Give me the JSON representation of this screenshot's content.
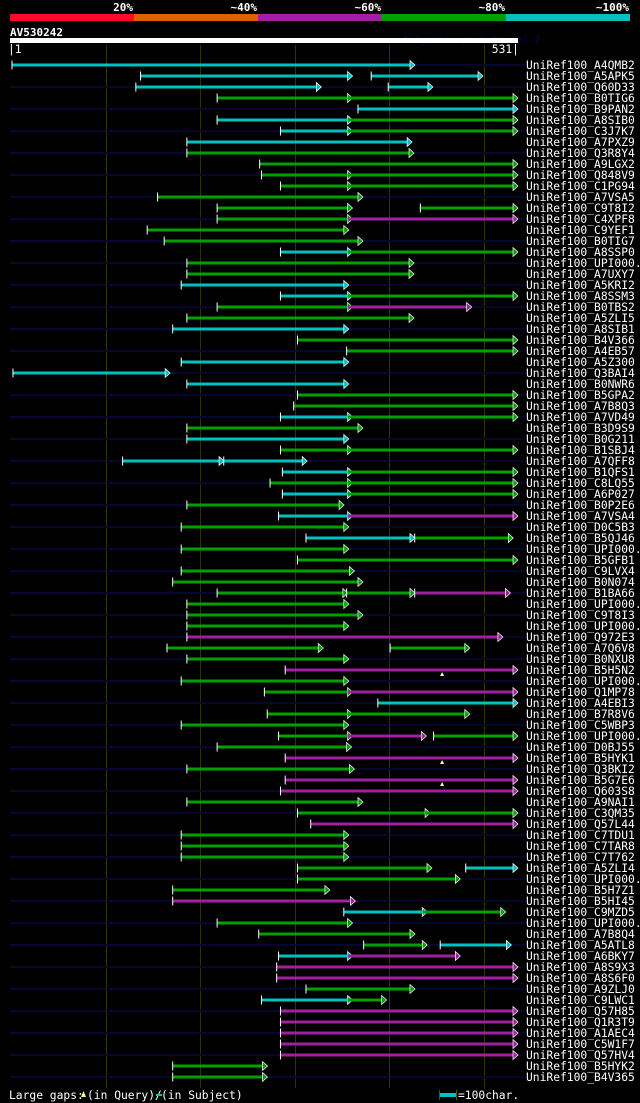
{
  "colors": {
    "r": "#ff0a2a",
    "o": "#e06000",
    "p": "#a020a0",
    "g": "#00a000",
    "c": "#00c0c0",
    "navy": "#06062e",
    "grid": "#333300",
    "gap": "#ffff80"
  },
  "identity_scale": [
    {
      "label": "20%",
      "color": "r"
    },
    {
      "label": "~40%",
      "color": "o"
    },
    {
      "label": "~60%",
      "color": "p"
    },
    {
      "label": "~80%",
      "color": "g"
    },
    {
      "label": "~100%",
      "color": "c"
    }
  ],
  "query": {
    "name": "AV530242",
    "length": 531,
    "start_label": "|1",
    "end_label": "531|",
    "watermark": "AlignView.pm Beta rel.7"
  },
  "grid_every": 100,
  "rows": [
    {
      "name": "UniRef100_A4QMB2",
      "segs": [
        [
          1,
          422,
          "c"
        ]
      ]
    },
    {
      "name": "UniRef100_A5APK5",
      "segs": [
        [
          137,
          356,
          "c"
        ],
        [
          381,
          494,
          "c"
        ]
      ]
    },
    {
      "name": "UniRef100_Q60D33",
      "segs": [
        [
          132,
          323,
          "c"
        ],
        [
          399,
          441,
          "c"
        ]
      ]
    },
    {
      "name": "UniRef100_B0TIG6",
      "segs": [
        [
          218,
          356,
          "g"
        ],
        [
          356,
          531,
          "g"
        ]
      ]
    },
    {
      "name": "UniRef100_B9PAN2",
      "segs": [
        [
          367,
          531,
          "c"
        ]
      ]
    },
    {
      "name": "UniRef100_A8SIB0",
      "segs": [
        [
          218,
          356,
          "c"
        ],
        [
          356,
          531,
          "g"
        ]
      ]
    },
    {
      "name": "UniRef100_C3J7K7",
      "segs": [
        [
          285,
          356,
          "c"
        ],
        [
          356,
          531,
          "g"
        ]
      ]
    },
    {
      "name": "UniRef100_A7PXZ9",
      "segs": [
        [
          186,
          419,
          "c"
        ]
      ]
    },
    {
      "name": "UniRef100_Q3R8Y4",
      "segs": [
        [
          186,
          421,
          "g"
        ]
      ]
    },
    {
      "name": "UniRef100_A9LGX2",
      "segs": [
        [
          263,
          531,
          "g"
        ]
      ]
    },
    {
      "name": "UniRef100_Q848V9",
      "segs": [
        [
          265,
          356,
          "g"
        ],
        [
          356,
          531,
          "g"
        ]
      ]
    },
    {
      "name": "UniRef100_C1PG94",
      "segs": [
        [
          285,
          356,
          "g"
        ],
        [
          356,
          531,
          "g"
        ]
      ]
    },
    {
      "name": "UniRef100_A7VSA5",
      "segs": [
        [
          155,
          367,
          "g"
        ]
      ]
    },
    {
      "name": "UniRef100_C9T8I2",
      "segs": [
        [
          218,
          356,
          "g"
        ],
        [
          433,
          531,
          "g"
        ]
      ]
    },
    {
      "name": "UniRef100_C4XPF8",
      "segs": [
        [
          218,
          356,
          "g"
        ],
        [
          356,
          531,
          "p"
        ]
      ]
    },
    {
      "name": "UniRef100_C9YEF1",
      "segs": [
        [
          144,
          352,
          "g"
        ]
      ]
    },
    {
      "name": "UniRef100_B0TIG7",
      "segs": [
        [
          162,
          367,
          "g"
        ]
      ]
    },
    {
      "name": "UniRef100_A8SSP0",
      "segs": [
        [
          285,
          356,
          "c"
        ],
        [
          356,
          531,
          "g"
        ]
      ]
    },
    {
      "name": "UniRef100_UPI000..",
      "segs": [
        [
          186,
          421,
          "g"
        ]
      ]
    },
    {
      "name": "UniRef100_A7UXY7",
      "segs": [
        [
          186,
          421,
          "g"
        ]
      ]
    },
    {
      "name": "UniRef100_A5KRI2",
      "segs": [
        [
          180,
          352,
          "c"
        ]
      ]
    },
    {
      "name": "UniRef100_A8SSM3",
      "segs": [
        [
          285,
          356,
          "c"
        ],
        [
          356,
          531,
          "g"
        ]
      ]
    },
    {
      "name": "UniRef100_B0TBS2",
      "segs": [
        [
          218,
          356,
          "g"
        ],
        [
          356,
          482,
          "p"
        ]
      ]
    },
    {
      "name": "UniRef100_A5ZLI5",
      "segs": [
        [
          186,
          421,
          "g"
        ]
      ]
    },
    {
      "name": "UniRef100_A8SIB1",
      "segs": [
        [
          171,
          352,
          "c"
        ]
      ]
    },
    {
      "name": "UniRef100_B4V366",
      "segs": [
        [
          303,
          531,
          "g"
        ]
      ]
    },
    {
      "name": "UniRef100_A4EB57",
      "segs": [
        [
          355,
          531,
          "g"
        ]
      ]
    },
    {
      "name": "UniRef100_A5Z300",
      "segs": [
        [
          180,
          352,
          "c"
        ]
      ]
    },
    {
      "name": "UniRef100_Q3BAI4",
      "segs": [
        [
          2,
          163,
          "c"
        ]
      ]
    },
    {
      "name": "UniRef100_B0NWR6",
      "segs": [
        [
          186,
          352,
          "c"
        ]
      ]
    },
    {
      "name": "UniRef100_B5GPA2",
      "segs": [
        [
          303,
          531,
          "g"
        ]
      ]
    },
    {
      "name": "UniRef100_A7B8Q3",
      "segs": [
        [
          299,
          531,
          "g"
        ]
      ]
    },
    {
      "name": "UniRef100_A7VD49",
      "segs": [
        [
          285,
          356,
          "c"
        ],
        [
          356,
          531,
          "g"
        ]
      ]
    },
    {
      "name": "UniRef100_B3D9S9",
      "segs": [
        [
          186,
          367,
          "g"
        ]
      ]
    },
    {
      "name": "UniRef100_B0G211",
      "segs": [
        [
          186,
          352,
          "c"
        ]
      ]
    },
    {
      "name": "UniRef100_B1SBJ4",
      "segs": [
        [
          285,
          356,
          "g"
        ],
        [
          356,
          531,
          "g"
        ]
      ]
    },
    {
      "name": "UniRef100_A7QFF8",
      "segs": [
        [
          118,
          220,
          "c"
        ],
        [
          225,
          308,
          "c"
        ]
      ]
    },
    {
      "name": "UniRef100_B1QFS1",
      "segs": [
        [
          287,
          356,
          "c"
        ],
        [
          356,
          531,
          "g"
        ]
      ]
    },
    {
      "name": "UniRef100_C8LQ55",
      "segs": [
        [
          274,
          356,
          "g"
        ],
        [
          356,
          531,
          "g"
        ]
      ]
    },
    {
      "name": "UniRef100_A6P027",
      "segs": [
        [
          287,
          356,
          "c"
        ],
        [
          356,
          531,
          "g"
        ]
      ]
    },
    {
      "name": "UniRef100_B0P2E6",
      "segs": [
        [
          186,
          347,
          "g"
        ]
      ]
    },
    {
      "name": "UniRef100_A7VSA4",
      "segs": [
        [
          283,
          356,
          "c"
        ],
        [
          356,
          531,
          "p"
        ]
      ]
    },
    {
      "name": "UniRef100_D0C5B3",
      "segs": [
        [
          180,
          352,
          "g"
        ]
      ]
    },
    {
      "name": "UniRef100_B5QJ46",
      "segs": [
        [
          312,
          422,
          "c"
        ],
        [
          427,
          526,
          "g"
        ]
      ]
    },
    {
      "name": "UniRef100_UPI000..",
      "segs": [
        [
          180,
          352,
          "g"
        ]
      ]
    },
    {
      "name": "UniRef100_B5GFB1",
      "segs": [
        [
          303,
          531,
          "g"
        ]
      ]
    },
    {
      "name": "UniRef100_C9LVX4",
      "segs": [
        [
          180,
          358,
          "g"
        ]
      ]
    },
    {
      "name": "UniRef100_B0N074",
      "segs": [
        [
          171,
          367,
          "g"
        ]
      ]
    },
    {
      "name": "UniRef100_B1BA66",
      "segs": [
        [
          218,
          351,
          "g"
        ],
        [
          355,
          422,
          "g"
        ],
        [
          427,
          523,
          "p"
        ]
      ]
    },
    {
      "name": "UniRef100_UPI000..",
      "segs": [
        [
          186,
          352,
          "g"
        ]
      ]
    },
    {
      "name": "UniRef100_C9T8I3",
      "segs": [
        [
          186,
          367,
          "g"
        ]
      ]
    },
    {
      "name": "UniRef100_UPI000..",
      "segs": [
        [
          186,
          352,
          "g"
        ]
      ]
    },
    {
      "name": "UniRef100_Q972E3",
      "segs": [
        [
          186,
          515,
          "p"
        ]
      ]
    },
    {
      "name": "UniRef100_A7Q6V8",
      "segs": [
        [
          165,
          325,
          "g"
        ],
        [
          401,
          480,
          "g"
        ]
      ]
    },
    {
      "name": "UniRef100_B0NXU8",
      "segs": [
        [
          186,
          352,
          "g"
        ]
      ]
    },
    {
      "name": "UniRef100_B5H5N2",
      "segs": [
        [
          290,
          531,
          "p"
        ]
      ],
      "qgaps": [
        456
      ]
    },
    {
      "name": "UniRef100_UPI000..",
      "segs": [
        [
          180,
          352,
          "g"
        ]
      ]
    },
    {
      "name": "UniRef100_Q1MP78",
      "segs": [
        [
          268,
          356,
          "g"
        ],
        [
          356,
          531,
          "p"
        ]
      ]
    },
    {
      "name": "UniRef100_A4EBI3",
      "segs": [
        [
          388,
          531,
          "c"
        ]
      ]
    },
    {
      "name": "UniRef100_B7R8V6",
      "segs": [
        [
          271,
          356,
          "g"
        ],
        [
          356,
          480,
          "g"
        ]
      ]
    },
    {
      "name": "UniRef100_C5WBP3",
      "segs": [
        [
          180,
          352,
          "g"
        ]
      ]
    },
    {
      "name": "UniRef100_UPI000..",
      "segs": [
        [
          283,
          356,
          "g"
        ],
        [
          356,
          434,
          "p"
        ],
        [
          447,
          531,
          "g"
        ]
      ]
    },
    {
      "name": "UniRef100_D0BJ55",
      "segs": [
        [
          218,
          355,
          "g"
        ]
      ]
    },
    {
      "name": "UniRef100_B5HYK1",
      "segs": [
        [
          290,
          531,
          "p"
        ]
      ],
      "qgaps": [
        456
      ]
    },
    {
      "name": "UniRef100_Q3BKI2",
      "segs": [
        [
          186,
          358,
          "g"
        ]
      ]
    },
    {
      "name": "UniRef100_B5G7E6",
      "segs": [
        [
          290,
          531,
          "p"
        ]
      ],
      "qgaps": [
        456
      ]
    },
    {
      "name": "UniRef100_Q603S8",
      "segs": [
        [
          285,
          531,
          "p"
        ]
      ]
    },
    {
      "name": "UniRef100_A9NAI1",
      "segs": [
        [
          186,
          367,
          "g"
        ]
      ]
    },
    {
      "name": "UniRef100_C3QM35",
      "segs": [
        [
          303,
          438,
          "g"
        ],
        [
          438,
          531,
          "g"
        ]
      ]
    },
    {
      "name": "UniRef100_Q57L44",
      "segs": [
        [
          317,
          531,
          "p"
        ]
      ]
    },
    {
      "name": "UniRef100_C7TDU1",
      "segs": [
        [
          180,
          352,
          "g"
        ]
      ]
    },
    {
      "name": "UniRef100_C7TAR8",
      "segs": [
        [
          180,
          352,
          "g"
        ]
      ]
    },
    {
      "name": "UniRef100_C7T762",
      "segs": [
        [
          180,
          352,
          "g"
        ]
      ]
    },
    {
      "name": "UniRef100_A5ZLI4",
      "segs": [
        [
          303,
          440,
          "g"
        ],
        [
          481,
          531,
          "c"
        ]
      ]
    },
    {
      "name": "UniRef100_UPI000..",
      "segs": [
        [
          303,
          470,
          "g"
        ]
      ]
    },
    {
      "name": "UniRef100_B5H7Z1",
      "segs": [
        [
          171,
          332,
          "g"
        ]
      ]
    },
    {
      "name": "UniRef100_B5HI45",
      "segs": [
        [
          171,
          359,
          "p"
        ]
      ]
    },
    {
      "name": "UniRef100_C9MZD5",
      "segs": [
        [
          352,
          435,
          "c"
        ],
        [
          435,
          518,
          "g"
        ]
      ]
    },
    {
      "name": "UniRef100_UPI000..",
      "segs": [
        [
          218,
          356,
          "g"
        ]
      ]
    },
    {
      "name": "UniRef100_A7B8Q4",
      "segs": [
        [
          262,
          422,
          "g"
        ]
      ]
    },
    {
      "name": "UniRef100_A5ATL8",
      "segs": [
        [
          373,
          435,
          "g"
        ],
        [
          454,
          524,
          "c"
        ]
      ]
    },
    {
      "name": "UniRef100_A6BKY7",
      "segs": [
        [
          283,
          356,
          "c"
        ],
        [
          356,
          470,
          "p"
        ]
      ]
    },
    {
      "name": "UniRef100_A8S9X3",
      "segs": [
        [
          281,
          531,
          "p"
        ]
      ]
    },
    {
      "name": "UniRef100_A8S6F0",
      "segs": [
        [
          281,
          531,
          "p"
        ]
      ]
    },
    {
      "name": "UniRef100_A9ZLJ0",
      "segs": [
        [
          312,
          422,
          "g"
        ]
      ]
    },
    {
      "name": "UniRef100_C9LWC1",
      "segs": [
        [
          265,
          356,
          "c"
        ],
        [
          356,
          392,
          "g"
        ]
      ]
    },
    {
      "name": "UniRef100_Q57H85",
      "segs": [
        [
          285,
          531,
          "p"
        ]
      ]
    },
    {
      "name": "UniRef100_Q1R3T9",
      "segs": [
        [
          285,
          531,
          "p"
        ]
      ]
    },
    {
      "name": "UniRef100_A1AEC4",
      "segs": [
        [
          285,
          531,
          "p"
        ]
      ]
    },
    {
      "name": "UniRef100_C5W1F7",
      "segs": [
        [
          285,
          531,
          "p"
        ]
      ]
    },
    {
      "name": "UniRef100_Q57HV4",
      "segs": [
        [
          285,
          531,
          "p"
        ]
      ]
    },
    {
      "name": "UniRef100_B5HYK2",
      "segs": [
        [
          171,
          266,
          "g"
        ]
      ]
    },
    {
      "name": "UniRef100_B4V365",
      "segs": [
        [
          171,
          266,
          "g"
        ]
      ]
    }
  ],
  "footer": {
    "gaps_label": "Large gaps:",
    "query_gap_label": "(in Query)/",
    "subject_gap_label": " (in Subject)",
    "scale_label": "=100char."
  }
}
